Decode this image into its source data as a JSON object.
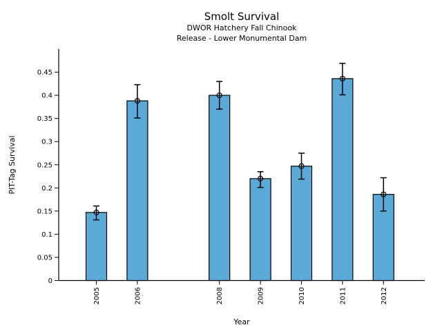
{
  "header": {
    "title": "Smolt Survival",
    "subtitle1": "DWOR Hatchery Fall Chinook",
    "subtitle2": "Release - Lower Monumental Dam"
  },
  "chart_data": {
    "type": "bar",
    "title": "Smolt Survival",
    "subtitle": [
      "DWOR Hatchery Fall Chinook",
      "Release - Lower Monumental Dam"
    ],
    "xlabel": "Year",
    "ylabel": "PIT-Tag Survival",
    "categories": [
      2005,
      2006,
      2008,
      2009,
      2010,
      2011,
      2012
    ],
    "values": [
      0.147,
      0.388,
      0.4,
      0.22,
      0.247,
      0.436,
      0.186
    ],
    "error_low": [
      0.131,
      0.351,
      0.37,
      0.201,
      0.219,
      0.401,
      0.15
    ],
    "error_high": [
      0.161,
      0.423,
      0.43,
      0.235,
      0.275,
      0.469,
      0.222
    ],
    "ylim": [
      0,
      0.5
    ],
    "yticks": [
      0,
      0.05,
      0.1,
      0.15,
      0.2,
      0.25,
      0.3,
      0.35,
      0.4,
      0.45
    ],
    "ytick_labels": [
      "0",
      "0.05",
      "0.1",
      "0.15",
      "0.2",
      "0.25",
      "0.3",
      "0.35",
      "0.4",
      "0.45"
    ],
    "x_year_span": [
      2005,
      2012
    ],
    "missing_years": [
      2007
    ],
    "grid": false,
    "legend": null,
    "bar_color": "#5BA9D6",
    "bar_edge_color": "#000000",
    "error_color": "#000000",
    "marker": "open-circle",
    "x_tick_rotation_deg": 90
  }
}
